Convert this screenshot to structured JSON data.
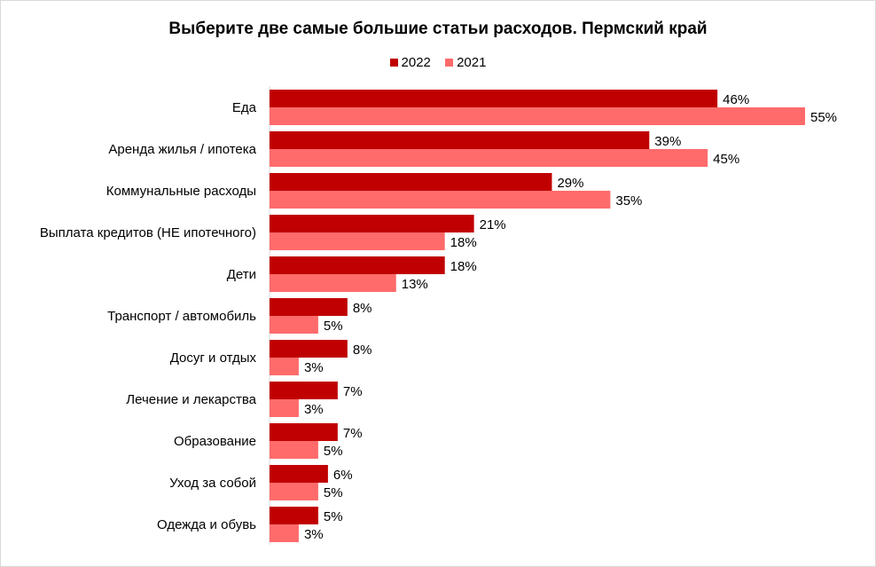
{
  "chart_data": {
    "type": "bar",
    "orientation": "horizontal",
    "title": "Выберите две самые большие статьи расходов. Пермский край",
    "categories": [
      "Еда",
      "Аренда жилья / ипотека",
      "Коммунальные расходы",
      "Выплата кредитов (НЕ ипотечного)",
      "Дети",
      "Транспорт / автомобиль",
      "Досуг и отдых",
      "Лечение и лекарства",
      "Образование",
      "Уход за собой",
      "Одежда и обувь"
    ],
    "series": [
      {
        "name": "2022",
        "color": "#c00000",
        "values": [
          46,
          39,
          29,
          21,
          18,
          8,
          8,
          7,
          7,
          6,
          5
        ]
      },
      {
        "name": "2021",
        "color": "#ff6b6b",
        "values": [
          55,
          45,
          35,
          18,
          13,
          5,
          3,
          3,
          5,
          5,
          3
        ]
      }
    ],
    "value_suffix": "%",
    "xlim": [
      0,
      60
    ],
    "legend_position": "top-center",
    "grid": false
  }
}
